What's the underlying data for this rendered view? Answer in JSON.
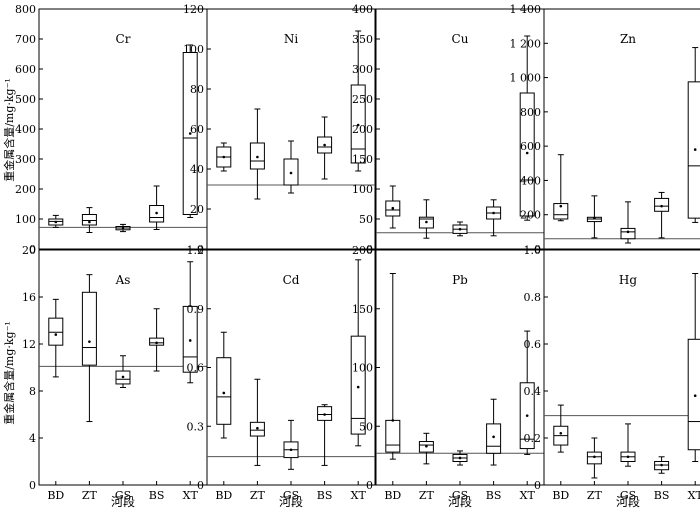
{
  "figure": {
    "y_axis_label": "重金属含量/mg·kg⁻¹",
    "x_axis_label": "河段",
    "categories": [
      "BD",
      "ZT",
      "GS",
      "BS",
      "XT"
    ]
  },
  "chart_data": [
    {
      "type": "box",
      "title": "Cr",
      "ylim": [
        0,
        800
      ],
      "yticks": [
        "0",
        "100",
        "200",
        "300",
        "400",
        "500",
        "600",
        "700",
        "800"
      ],
      "reference_line": 72,
      "boxes": [
        {
          "category": "BD",
          "min": 72,
          "q1": 80,
          "median": 92,
          "q3": 100,
          "max": 112,
          "mean": 90
        },
        {
          "category": "ZT",
          "min": 55,
          "q1": 80,
          "median": 95,
          "q3": 115,
          "max": 138,
          "mean": 90
        },
        {
          "category": "GS",
          "min": 58,
          "q1": 64,
          "median": 70,
          "q3": 75,
          "max": 82,
          "mean": 70
        },
        {
          "category": "BS",
          "min": 65,
          "q1": 90,
          "median": 105,
          "q3": 145,
          "max": 210,
          "mean": 120
        },
        {
          "category": "XT",
          "min": 105,
          "q1": 115,
          "median": 370,
          "q3": 655,
          "max": 680,
          "mean": 385
        }
      ]
    },
    {
      "type": "box",
      "title": "Ni",
      "ylim": [
        0,
        120
      ],
      "yticks": [
        "0",
        "20",
        "40",
        "60",
        "80",
        "100",
        "120"
      ],
      "reference_line": 32,
      "boxes": [
        {
          "category": "BD",
          "min": 39,
          "q1": 41,
          "median": 46,
          "q3": 51,
          "max": 53,
          "mean": 46
        },
        {
          "category": "ZT",
          "min": 25,
          "q1": 40,
          "median": 44,
          "q3": 53,
          "max": 70,
          "mean": 46
        },
        {
          "category": "GS",
          "min": 28,
          "q1": 32,
          "median": 32,
          "q3": 45,
          "max": 54,
          "mean": 38
        },
        {
          "category": "BS",
          "min": 35,
          "q1": 48,
          "median": 51,
          "q3": 56,
          "max": 66,
          "mean": 52
        },
        {
          "category": "XT",
          "min": 39,
          "q1": 43,
          "median": 50,
          "q3": 82,
          "max": 109,
          "mean": 62
        }
      ]
    },
    {
      "type": "box",
      "title": "Cu",
      "ylim": [
        0,
        400
      ],
      "yticks": [
        "0",
        "50",
        "100",
        "150",
        "200",
        "250",
        "300",
        "350",
        "400"
      ],
      "reference_line": 27,
      "boxes": [
        {
          "category": "BD",
          "min": 35,
          "q1": 55,
          "median": 65,
          "q3": 80,
          "max": 105,
          "mean": 68
        },
        {
          "category": "ZT",
          "min": 18,
          "q1": 35,
          "median": 50,
          "q3": 53,
          "max": 82,
          "mean": 45
        },
        {
          "category": "GS",
          "min": 22,
          "q1": 26,
          "median": 33,
          "q3": 40,
          "max": 45,
          "mean": 33
        },
        {
          "category": "BS",
          "min": 22,
          "q1": 50,
          "median": 60,
          "q3": 70,
          "max": 82,
          "mean": 60
        },
        {
          "category": "XT",
          "min": 48,
          "q1": 55,
          "median": 115,
          "q3": 260,
          "max": 355,
          "mean": 160
        }
      ]
    },
    {
      "type": "box",
      "title": "Zn",
      "ylim": [
        0,
        1400
      ],
      "yticks": [
        "0",
        "200",
        "400",
        "600",
        "800",
        "1 000",
        "1 200",
        "1 400"
      ],
      "reference_line": 60,
      "boxes": [
        {
          "category": "BD",
          "min": 165,
          "q1": 175,
          "median": 200,
          "q3": 265,
          "max": 550,
          "mean": 250
        },
        {
          "category": "ZT",
          "min": 65,
          "q1": 160,
          "median": 175,
          "q3": 185,
          "max": 310,
          "mean": 180
        },
        {
          "category": "GS",
          "min": 35,
          "q1": 60,
          "median": 100,
          "q3": 120,
          "max": 275,
          "mean": 100
        },
        {
          "category": "BS",
          "min": 65,
          "q1": 220,
          "median": 250,
          "q3": 295,
          "max": 330,
          "mean": 250
        },
        {
          "category": "XT",
          "min": 155,
          "q1": 180,
          "median": 485,
          "q3": 975,
          "max": 1175,
          "mean": 580
        }
      ]
    },
    {
      "type": "box",
      "title": "As",
      "ylim": [
        0,
        20
      ],
      "yticks": [
        "0",
        "4",
        "8",
        "12",
        "16",
        "20"
      ],
      "reference_line": 10.1,
      "boxes": [
        {
          "category": "BD",
          "min": 9.2,
          "q1": 11.9,
          "median": 13.0,
          "q3": 14.2,
          "max": 15.8,
          "mean": 12.8
        },
        {
          "category": "ZT",
          "min": 5.4,
          "q1": 10.2,
          "median": 11.7,
          "q3": 16.4,
          "max": 17.9,
          "mean": 12.2
        },
        {
          "category": "GS",
          "min": 8.3,
          "q1": 8.6,
          "median": 9.0,
          "q3": 9.7,
          "max": 11.0,
          "mean": 9.2
        },
        {
          "category": "BS",
          "min": 9.7,
          "q1": 11.9,
          "median": 12.1,
          "q3": 12.5,
          "max": 15.0,
          "mean": 12.1
        },
        {
          "category": "XT",
          "min": 8.7,
          "q1": 9.6,
          "median": 10.9,
          "q3": 15.2,
          "max": 19.0,
          "mean": 12.3
        }
      ]
    },
    {
      "type": "box",
      "title": "Cd",
      "ylim": [
        0,
        1.2
      ],
      "yticks": [
        "0",
        "0.3",
        "0.6",
        "0.9",
        "1.2"
      ],
      "reference_line": 0.145,
      "boxes": [
        {
          "category": "BD",
          "min": 0.24,
          "q1": 0.31,
          "median": 0.45,
          "q3": 0.65,
          "max": 0.78,
          "mean": 0.47
        },
        {
          "category": "ZT",
          "min": 0.1,
          "q1": 0.25,
          "median": 0.28,
          "q3": 0.32,
          "max": 0.54,
          "mean": 0.29
        },
        {
          "category": "GS",
          "min": 0.08,
          "q1": 0.14,
          "median": 0.18,
          "q3": 0.22,
          "max": 0.33,
          "mean": 0.18
        },
        {
          "category": "BS",
          "min": 0.1,
          "q1": 0.33,
          "median": 0.36,
          "q3": 0.4,
          "max": 0.41,
          "mean": 0.36
        },
        {
          "category": "XT",
          "min": 0.2,
          "q1": 0.26,
          "median": 0.34,
          "q3": 0.76,
          "max": 1.15,
          "mean": 0.5
        }
      ]
    },
    {
      "type": "box",
      "title": "Pb",
      "ylim": [
        0,
        200
      ],
      "yticks": [
        "0",
        "50",
        "100",
        "150",
        "200"
      ],
      "reference_line": 27,
      "boxes": [
        {
          "category": "BD",
          "min": 22,
          "q1": 28,
          "median": 34,
          "q3": 55,
          "max": 180,
          "mean": 55
        },
        {
          "category": "ZT",
          "min": 18,
          "q1": 28,
          "median": 34,
          "q3": 37,
          "max": 44,
          "mean": 33
        },
        {
          "category": "GS",
          "min": 17,
          "q1": 20,
          "median": 23,
          "q3": 26,
          "max": 29,
          "mean": 23
        },
        {
          "category": "BS",
          "min": 17,
          "q1": 27,
          "median": 33,
          "q3": 52,
          "max": 73,
          "mean": 41
        },
        {
          "category": "XT",
          "min": 26,
          "q1": 31,
          "median": 39,
          "q3": 87,
          "max": 131,
          "mean": 59
        }
      ]
    },
    {
      "type": "box",
      "title": "Hg",
      "ylim": [
        0,
        1.0
      ],
      "yticks": [
        "0",
        "0.2",
        "0.4",
        "0.6",
        "0.8",
        "1.0"
      ],
      "reference_line": 0.295,
      "boxes": [
        {
          "category": "BD",
          "min": 0.14,
          "q1": 0.17,
          "median": 0.21,
          "q3": 0.25,
          "max": 0.34,
          "mean": 0.22
        },
        {
          "category": "ZT",
          "min": 0.03,
          "q1": 0.09,
          "median": 0.12,
          "q3": 0.14,
          "max": 0.2,
          "mean": 0.12
        },
        {
          "category": "GS",
          "min": 0.08,
          "q1": 0.1,
          "median": 0.12,
          "q3": 0.14,
          "max": 0.26,
          "mean": 0.12
        },
        {
          "category": "BS",
          "min": 0.05,
          "q1": 0.065,
          "median": 0.085,
          "q3": 0.1,
          "max": 0.12,
          "mean": 0.085
        },
        {
          "category": "XT",
          "min": 0.1,
          "q1": 0.15,
          "median": 0.27,
          "q3": 0.62,
          "max": 0.9,
          "mean": 0.38
        }
      ]
    }
  ]
}
